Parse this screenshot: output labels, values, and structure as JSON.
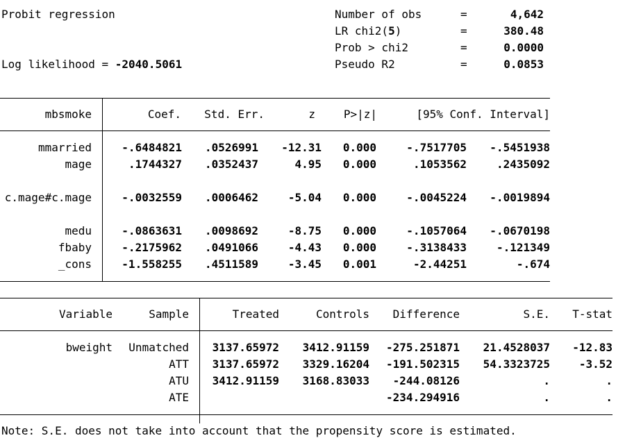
{
  "header": {
    "title": "Probit regression",
    "loglik_label": "Log likelihood = ",
    "loglik_value": "-2040.5061",
    "stats": [
      {
        "label": "Number of obs",
        "eq": "=",
        "value": "4,642"
      },
      {
        "label": "LR chi2(",
        "df": "5",
        "label_end": ")",
        "eq": "=",
        "value": "380.48"
      },
      {
        "label": "Prob > chi2",
        "eq": "=",
        "value": "0.0000"
      },
      {
        "label": "Pseudo R2",
        "eq": "=",
        "value": "0.0853"
      }
    ]
  },
  "probit_table": {
    "depvar": "mbsmoke",
    "columns": [
      "Coef.",
      "Std. Err.",
      "z",
      "P>|z|",
      "[95% Conf. Interval]"
    ],
    "rows": [
      {
        "name": "mmarried",
        "coef": "-.6484821",
        "se": ".0526991",
        "z": "-12.31",
        "p": "0.000",
        "lo": "-.7517705",
        "hi": "-.5451938"
      },
      {
        "name": "mage",
        "coef": ".1744327",
        "se": ".0352437",
        "z": "4.95",
        "p": "0.000",
        "lo": ".1053562",
        "hi": ".2435092"
      },
      {
        "name": "c.mage#c.mage",
        "coef": "-.0032559",
        "se": ".0006462",
        "z": "-5.04",
        "p": "0.000",
        "lo": "-.0045224",
        "hi": "-.0019894"
      },
      {
        "name": "medu",
        "coef": "-.0863631",
        "se": ".0098692",
        "z": "-8.75",
        "p": "0.000",
        "lo": "-.1057064",
        "hi": "-.0670198"
      },
      {
        "name": "fbaby",
        "coef": "-.2175962",
        "se": ".0491066",
        "z": "-4.43",
        "p": "0.000",
        "lo": "-.3138433",
        "hi": "-.121349"
      },
      {
        "name": "_cons",
        "coef": "-1.558255",
        "se": ".4511589",
        "z": "-3.45",
        "p": "0.001",
        "lo": "-2.44251",
        "hi": "-.674"
      }
    ]
  },
  "match_table": {
    "columns": [
      "Variable",
      "Sample",
      "Treated",
      "Controls",
      "Difference",
      "S.E.",
      "T-stat"
    ],
    "variable": "bweight",
    "rows": [
      {
        "sample": "Unmatched",
        "treated": "3137.65972",
        "controls": "3412.91159",
        "diff": "-275.251871",
        "se": "21.4528037",
        "t": "-12.83"
      },
      {
        "sample": "ATT",
        "treated": "3137.65972",
        "controls": "3329.16204",
        "diff": "-191.502315",
        "se": "54.3323725",
        "t": "-3.52"
      },
      {
        "sample": "ATU",
        "treated": "3412.91159",
        "controls": "3168.83033",
        "diff": "-244.08126",
        "se": ".",
        "t": "."
      },
      {
        "sample": "ATE",
        "treated": "",
        "controls": "",
        "diff": "-234.294916",
        "se": ".",
        "t": "."
      }
    ]
  },
  "note": "Note: S.E. does not take into account that the propensity score is estimated."
}
